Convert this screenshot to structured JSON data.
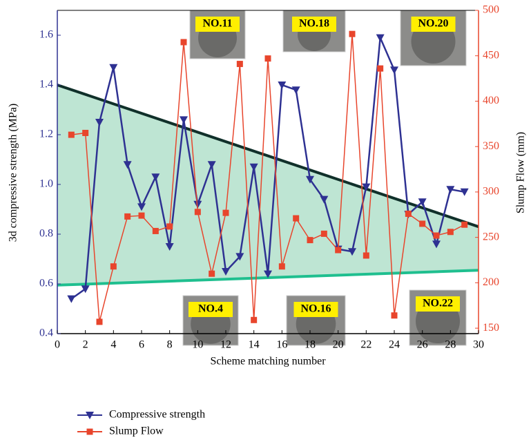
{
  "chart_data": {
    "type": "line",
    "xlabel": "Scheme matching number",
    "ylabel": "3d compressive strength (MPa)",
    "y2label": "Slump Flow (mm)",
    "x": [
      1,
      2,
      3,
      4,
      5,
      6,
      7,
      8,
      9,
      10,
      11,
      12,
      13,
      14,
      15,
      16,
      17,
      18,
      19,
      20,
      21,
      22,
      23,
      24,
      25,
      26,
      27,
      28,
      29
    ],
    "series": [
      {
        "name": "Compressive strength",
        "color": "#2e3192",
        "marker": "triangle-down",
        "values": [
          0.54,
          0.58,
          1.25,
          1.47,
          1.08,
          0.91,
          1.03,
          0.75,
          1.26,
          0.92,
          1.08,
          0.65,
          0.71,
          1.07,
          0.64,
          1.4,
          1.38,
          1.02,
          0.94,
          0.74,
          0.73,
          0.99,
          1.59,
          1.46,
          0.88,
          0.93,
          0.76,
          0.98,
          0.97
        ]
      },
      {
        "name": "Slump Flow",
        "color": "#e8452c",
        "marker": "square",
        "axis": "y2",
        "values": [
          363,
          365,
          157,
          218,
          273,
          274,
          257,
          262,
          465,
          278,
          210,
          277,
          441,
          159,
          447,
          218,
          271,
          247,
          254,
          236,
          474,
          230,
          436,
          164,
          276,
          265,
          252,
          256,
          264
        ]
      }
    ],
    "upper_line": {
      "color": "#10302a",
      "x": [
        0,
        30
      ],
      "y": [
        1.4,
        0.83
      ]
    },
    "lower_line": {
      "color": "#1fbf8f",
      "x": [
        0,
        30
      ],
      "y": [
        0.595,
        0.655
      ]
    },
    "band_color": "#a8dcc4",
    "annotations": [
      "NO.11",
      "NO.18",
      "NO.20",
      "NO.4",
      "NO.16",
      "NO.22"
    ],
    "xlim": [
      0,
      30
    ],
    "xticks": [
      0,
      2,
      4,
      6,
      8,
      10,
      12,
      14,
      16,
      18,
      20,
      22,
      24,
      26,
      28,
      30
    ],
    "ylim": [
      0.4,
      1.7
    ],
    "yticks": [
      0.4,
      0.6,
      0.8,
      {
        "value": 1,
        "label": "1.0"
      },
      1.2,
      1.4,
      1.6
    ],
    "y2lim": [
      144,
      500
    ],
    "y2ticks": [
      150,
      200,
      250,
      300,
      350,
      400,
      450,
      500
    ],
    "legend": "bottom-left"
  }
}
